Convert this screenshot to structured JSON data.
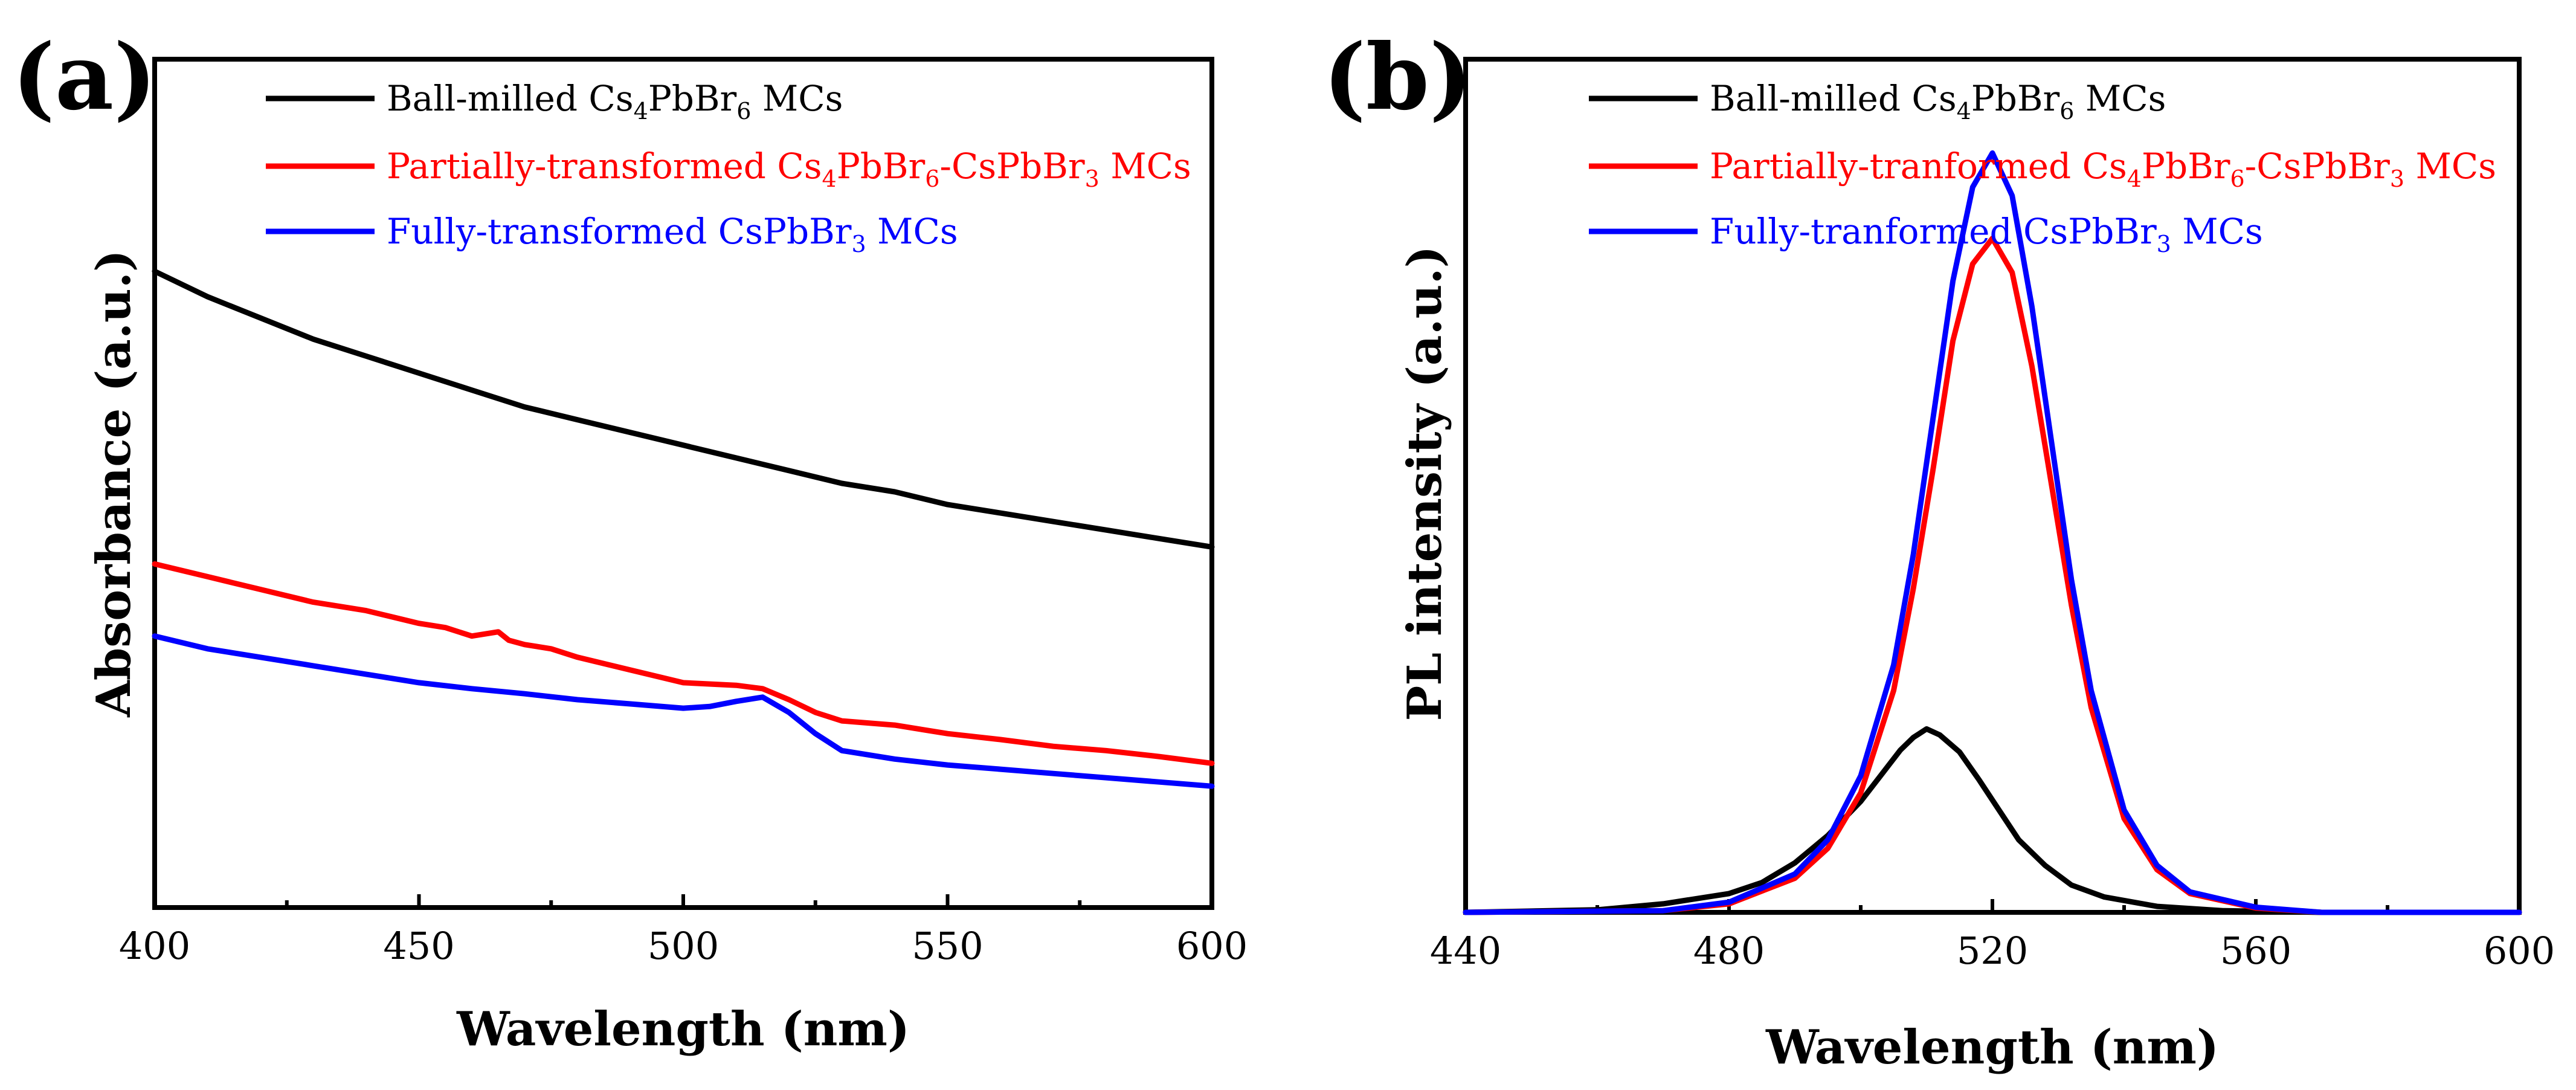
{
  "chart_data": [
    {
      "panel": "(a)",
      "type": "line",
      "xlabel": "Wavelength (nm)",
      "ylabel": "Absorbance (a.u.)",
      "xlim": [
        400,
        600
      ],
      "ylim": [
        0,
        1.0
      ],
      "x_ticks": [
        400,
        450,
        500,
        550,
        600
      ],
      "y_ticks_labeled": false,
      "legend": [
        "Ball-milled Cs4PbBr6 MCs",
        "Partially-transformed Cs4PbBr6-CsPbBr3 MCs",
        "Fully-transformed CsPbBr3 MCs"
      ],
      "series": [
        {
          "name": "Ball-milled Cs4PbBr6 MCs",
          "color": "#000000",
          "x": [
            400,
            410,
            420,
            430,
            440,
            450,
            460,
            470,
            480,
            490,
            500,
            510,
            520,
            530,
            540,
            550,
            560,
            570,
            580,
            590,
            600
          ],
          "y": [
            0.75,
            0.72,
            0.695,
            0.67,
            0.65,
            0.63,
            0.61,
            0.59,
            0.575,
            0.56,
            0.545,
            0.53,
            0.515,
            0.5,
            0.49,
            0.475,
            0.465,
            0.455,
            0.445,
            0.435,
            0.425
          ]
        },
        {
          "name": "Partially-transformed Cs4PbBr6-CsPbBr3 MCs",
          "color": "#ff0000",
          "x": [
            400,
            410,
            420,
            430,
            440,
            450,
            455,
            460,
            465,
            467,
            470,
            475,
            480,
            490,
            500,
            510,
            515,
            520,
            525,
            530,
            540,
            550,
            560,
            570,
            580,
            590,
            600
          ],
          "y": [
            0.405,
            0.39,
            0.375,
            0.36,
            0.35,
            0.335,
            0.33,
            0.32,
            0.325,
            0.315,
            0.31,
            0.305,
            0.295,
            0.28,
            0.265,
            0.262,
            0.258,
            0.245,
            0.23,
            0.22,
            0.215,
            0.205,
            0.198,
            0.19,
            0.185,
            0.178,
            0.17
          ]
        },
        {
          "name": "Fully-transformed CsPbBr3 MCs",
          "color": "#0000ff",
          "x": [
            400,
            410,
            420,
            430,
            440,
            450,
            460,
            470,
            480,
            490,
            500,
            505,
            510,
            515,
            520,
            525,
            530,
            540,
            550,
            560,
            570,
            580,
            590,
            600
          ],
          "y": [
            0.32,
            0.305,
            0.295,
            0.285,
            0.275,
            0.265,
            0.258,
            0.252,
            0.245,
            0.24,
            0.235,
            0.237,
            0.243,
            0.248,
            0.23,
            0.205,
            0.185,
            0.175,
            0.168,
            0.163,
            0.158,
            0.153,
            0.148,
            0.143
          ]
        }
      ]
    },
    {
      "panel": "(b)",
      "type": "line",
      "xlabel": "Wavelength (nm)",
      "ylabel": "PL intensity (a.u.)",
      "xlim": [
        440,
        600
      ],
      "ylim": [
        0,
        1.0
      ],
      "x_ticks": [
        440,
        480,
        520,
        560,
        600
      ],
      "y_ticks_labeled": false,
      "legend": [
        "Ball-milled Cs4PbBr6 MCs",
        "Partially-tranformed Cs4PbBr6-CsPbBr3 MCs",
        "Fully-tranformed CsPbBr3 MCs"
      ],
      "series": [
        {
          "name": "Ball-milled Cs4PbBr6 MCs",
          "color": "#000000",
          "x": [
            440,
            460,
            470,
            480,
            485,
            490,
            495,
            500,
            503,
            506,
            508,
            510,
            512,
            515,
            518,
            521,
            524,
            528,
            532,
            537,
            545,
            555,
            570,
            600
          ],
          "y": [
            0.0,
            0.003,
            0.01,
            0.022,
            0.035,
            0.058,
            0.09,
            0.13,
            0.16,
            0.19,
            0.205,
            0.215,
            0.208,
            0.188,
            0.155,
            0.12,
            0.085,
            0.055,
            0.032,
            0.018,
            0.007,
            0.002,
            0.0,
            0.0
          ]
        },
        {
          "name": "Partially-tranformed Cs4PbBr6-CsPbBr3 MCs",
          "color": "#ff0000",
          "x": [
            440,
            470,
            480,
            490,
            495,
            500,
            505,
            508,
            511,
            514,
            517,
            520,
            523,
            526,
            529,
            532,
            535,
            540,
            545,
            550,
            560,
            570,
            600
          ],
          "y": [
            0.0,
            0.002,
            0.01,
            0.04,
            0.075,
            0.14,
            0.26,
            0.38,
            0.52,
            0.67,
            0.76,
            0.79,
            0.75,
            0.64,
            0.5,
            0.36,
            0.24,
            0.11,
            0.05,
            0.022,
            0.005,
            0.0,
            0.0
          ]
        },
        {
          "name": "Fully-tranformed CsPbBr3 MCs",
          "color": "#0000ff",
          "x": [
            440,
            470,
            480,
            490,
            495,
            500,
            505,
            508,
            511,
            514,
            517,
            520,
            523,
            526,
            529,
            532,
            535,
            540,
            545,
            550,
            560,
            570,
            600
          ],
          "y": [
            0.0,
            0.002,
            0.012,
            0.045,
            0.085,
            0.16,
            0.29,
            0.42,
            0.58,
            0.74,
            0.85,
            0.89,
            0.84,
            0.71,
            0.55,
            0.39,
            0.26,
            0.12,
            0.055,
            0.024,
            0.006,
            0.0,
            0.0
          ]
        }
      ]
    }
  ],
  "panels": {
    "a": {
      "label": "(a)",
      "xlabel": "Wavelength (nm)",
      "ylabel": "Absorbance (a.u.)",
      "legend": [
        {
          "pre": "Ball-milled Cs",
          "s1": "4",
          "mid": "PbBr",
          "s2": "6",
          "post": " MCs",
          "color": "#000000"
        },
        {
          "pre": "Partially-transformed Cs",
          "s1": "4",
          "mid": "PbBr",
          "s2": "6",
          "mid2": "-CsPbBr",
          "s3": "3",
          "post": " MCs",
          "color": "#ff0000"
        },
        {
          "pre": "Fully-transformed CsPbBr",
          "s1": "3",
          "post": " MCs",
          "color": "#0000ff"
        }
      ]
    },
    "b": {
      "label": "(b)",
      "xlabel": "Wavelength (nm)",
      "ylabel": "PL intensity (a.u.)",
      "legend": [
        {
          "pre": "Ball-milled Cs",
          "s1": "4",
          "mid": "PbBr",
          "s2": "6",
          "post": " MCs",
          "color": "#000000"
        },
        {
          "pre": "Partially-tranformed Cs",
          "s1": "4",
          "mid": "PbBr",
          "s2": "6",
          "mid2": "-CsPbBr",
          "s3": "3",
          "post": " MCs",
          "color": "#ff0000"
        },
        {
          "pre": "Fully-tranformed CsPbBr",
          "s1": "3",
          "post": " MCs",
          "color": "#0000ff"
        }
      ]
    }
  }
}
